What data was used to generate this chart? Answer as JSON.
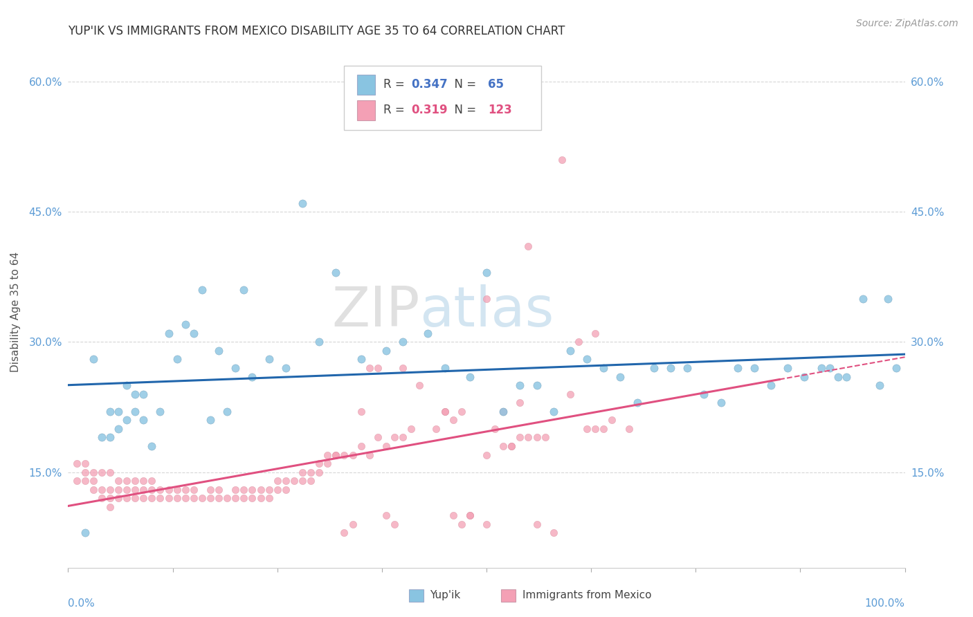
{
  "title": "YUP'IK VS IMMIGRANTS FROM MEXICO DISABILITY AGE 35 TO 64 CORRELATION CHART",
  "source": "Source: ZipAtlas.com",
  "ylabel": "Disability Age 35 to 64",
  "xmin": 0.0,
  "xmax": 1.0,
  "ymin": 0.04,
  "ymax": 0.63,
  "yticks": [
    0.15,
    0.3,
    0.45,
    0.6
  ],
  "ytick_labels": [
    "15.0%",
    "30.0%",
    "45.0%",
    "60.0%"
  ],
  "color_blue": "#89c4e1",
  "color_pink": "#f4a0b5",
  "color_blue_line": "#2166ac",
  "color_pink_line": "#e05080",
  "blue_r": "0.347",
  "blue_n": "65",
  "pink_r": "0.319",
  "pink_n": "123",
  "blue_scatter_x": [
    0.02,
    0.03,
    0.04,
    0.05,
    0.05,
    0.06,
    0.06,
    0.07,
    0.07,
    0.08,
    0.08,
    0.09,
    0.09,
    0.1,
    0.11,
    0.12,
    0.13,
    0.15,
    0.17,
    0.18,
    0.19,
    0.2,
    0.22,
    0.24,
    0.26,
    0.28,
    0.3,
    0.32,
    0.35,
    0.38,
    0.4,
    0.43,
    0.45,
    0.48,
    0.5,
    0.52,
    0.54,
    0.56,
    0.58,
    0.6,
    0.62,
    0.64,
    0.66,
    0.68,
    0.7,
    0.72,
    0.74,
    0.76,
    0.78,
    0.8,
    0.82,
    0.84,
    0.86,
    0.88,
    0.9,
    0.91,
    0.92,
    0.93,
    0.95,
    0.97,
    0.98,
    0.99,
    0.14,
    0.16,
    0.21
  ],
  "blue_scatter_y": [
    0.08,
    0.28,
    0.19,
    0.19,
    0.22,
    0.2,
    0.22,
    0.21,
    0.25,
    0.22,
    0.24,
    0.21,
    0.24,
    0.18,
    0.22,
    0.31,
    0.28,
    0.31,
    0.21,
    0.29,
    0.22,
    0.27,
    0.26,
    0.28,
    0.27,
    0.46,
    0.3,
    0.38,
    0.28,
    0.29,
    0.3,
    0.31,
    0.27,
    0.26,
    0.38,
    0.22,
    0.25,
    0.25,
    0.22,
    0.29,
    0.28,
    0.27,
    0.26,
    0.23,
    0.27,
    0.27,
    0.27,
    0.24,
    0.23,
    0.27,
    0.27,
    0.25,
    0.27,
    0.26,
    0.27,
    0.27,
    0.26,
    0.26,
    0.35,
    0.25,
    0.35,
    0.27,
    0.32,
    0.36,
    0.36
  ],
  "pink_scatter_x": [
    0.01,
    0.01,
    0.02,
    0.02,
    0.02,
    0.03,
    0.03,
    0.03,
    0.04,
    0.04,
    0.04,
    0.05,
    0.05,
    0.05,
    0.05,
    0.06,
    0.06,
    0.06,
    0.07,
    0.07,
    0.07,
    0.08,
    0.08,
    0.08,
    0.09,
    0.09,
    0.09,
    0.1,
    0.1,
    0.1,
    0.11,
    0.11,
    0.12,
    0.12,
    0.13,
    0.13,
    0.14,
    0.14,
    0.15,
    0.15,
    0.16,
    0.17,
    0.17,
    0.18,
    0.18,
    0.19,
    0.2,
    0.2,
    0.21,
    0.21,
    0.22,
    0.22,
    0.23,
    0.23,
    0.24,
    0.24,
    0.25,
    0.25,
    0.26,
    0.26,
    0.27,
    0.28,
    0.28,
    0.29,
    0.29,
    0.3,
    0.3,
    0.31,
    0.32,
    0.33,
    0.34,
    0.35,
    0.36,
    0.37,
    0.38,
    0.39,
    0.4,
    0.41,
    0.42,
    0.44,
    0.45,
    0.46,
    0.47,
    0.48,
    0.5,
    0.52,
    0.54,
    0.56,
    0.58,
    0.6,
    0.4,
    0.45,
    0.5,
    0.55,
    0.59,
    0.61,
    0.63,
    0.51,
    0.36,
    0.37,
    0.38,
    0.39,
    0.48,
    0.47,
    0.46,
    0.35,
    0.34,
    0.33,
    0.32,
    0.31,
    0.5,
    0.52,
    0.53,
    0.54,
    0.56,
    0.57,
    0.53,
    0.55,
    0.62,
    0.63,
    0.64,
    0.65,
    0.67
  ],
  "pink_scatter_y": [
    0.14,
    0.16,
    0.14,
    0.15,
    0.16,
    0.13,
    0.14,
    0.15,
    0.12,
    0.13,
    0.15,
    0.11,
    0.12,
    0.13,
    0.15,
    0.12,
    0.13,
    0.14,
    0.12,
    0.13,
    0.14,
    0.12,
    0.13,
    0.14,
    0.12,
    0.13,
    0.14,
    0.12,
    0.13,
    0.14,
    0.12,
    0.13,
    0.12,
    0.13,
    0.12,
    0.13,
    0.12,
    0.13,
    0.12,
    0.13,
    0.12,
    0.12,
    0.13,
    0.12,
    0.13,
    0.12,
    0.12,
    0.13,
    0.12,
    0.13,
    0.12,
    0.13,
    0.12,
    0.13,
    0.12,
    0.13,
    0.13,
    0.14,
    0.13,
    0.14,
    0.14,
    0.14,
    0.15,
    0.14,
    0.15,
    0.15,
    0.16,
    0.16,
    0.17,
    0.17,
    0.17,
    0.18,
    0.17,
    0.19,
    0.18,
    0.19,
    0.19,
    0.2,
    0.25,
    0.2,
    0.22,
    0.21,
    0.22,
    0.1,
    0.09,
    0.22,
    0.23,
    0.09,
    0.08,
    0.24,
    0.27,
    0.22,
    0.35,
    0.41,
    0.51,
    0.3,
    0.31,
    0.2,
    0.27,
    0.27,
    0.1,
    0.09,
    0.1,
    0.09,
    0.1,
    0.22,
    0.09,
    0.08,
    0.17,
    0.17,
    0.17,
    0.18,
    0.18,
    0.19,
    0.19,
    0.19,
    0.18,
    0.19,
    0.2,
    0.2,
    0.2,
    0.21,
    0.2
  ]
}
